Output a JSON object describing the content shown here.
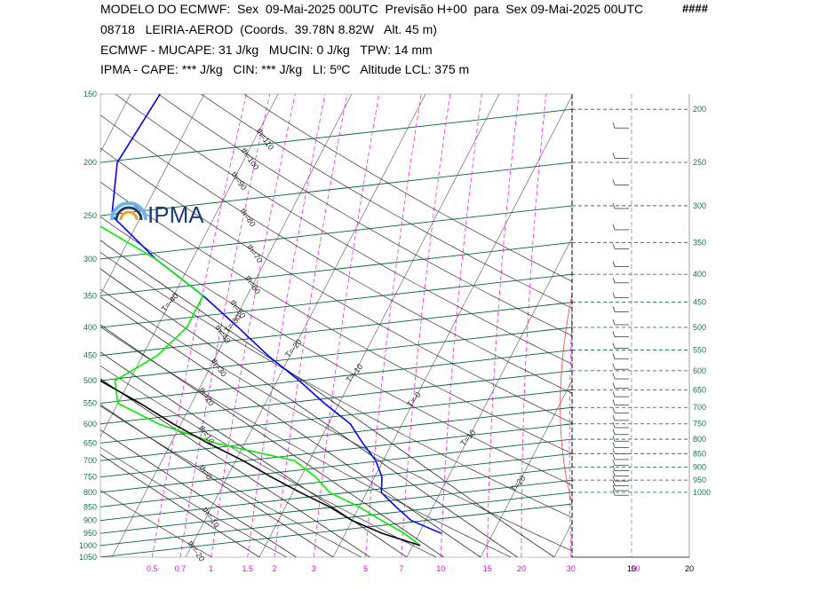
{
  "header": {
    "line1": "MODELO DO ECMWF:  Sex  09-Mai-2025 00UTC  Previsão H+00  para  Sex 09-Mai-2025 00UTC",
    "marks": "####",
    "line2": "08718   LEIRIA-AEROD  (Coords.  39.78N 8.82W   Alt. 45 m)",
    "line3": "ECMWF - MUCAPE: 31 J/kg   MUCIN: 0 J/kg   TPW: 14 mm",
    "line4": "IPMA - CAPE: *** J/kg   CIN: *** J/kg   LI: 5ºC   Altitude LCL: 375 m"
  },
  "logo": {
    "text": "IPMA"
  },
  "chart_data": {
    "type": "line",
    "pressure_levels_left": [
      "150",
      "200",
      "250",
      "300",
      "350",
      "400",
      "450",
      "500",
      "550",
      "600",
      "650",
      "700",
      "750",
      "800",
      "850",
      "900",
      "950",
      "1000",
      "1050"
    ],
    "pressure_levels_right": [
      "200",
      "250",
      "300",
      "350",
      "400",
      "450",
      "500",
      "550",
      "600",
      "650",
      "700",
      "750",
      "800",
      "850",
      "900",
      "950",
      "1000"
    ],
    "mixing_ratio_ticks": [
      "0.5",
      "0.7",
      "1",
      "1.5",
      "2",
      "3",
      "5",
      "7",
      "10",
      "15",
      "20",
      "30",
      "50"
    ],
    "wind_axis_ticks": [
      "10",
      "20"
    ],
    "isotherm_labels": [
      "T=-90",
      "T=-80",
      "T=-70",
      "T=-60",
      "T=-50",
      "T=-40",
      "T=-30",
      "T=-20",
      "T=-10",
      "T=-0",
      "T=10",
      "T=20",
      "T=30",
      "T=40"
    ],
    "dry_adiabat_labels": [
      "th=110",
      "th=100",
      "th=90",
      "th=80",
      "th=70",
      "th=60",
      "th=50",
      "th=40",
      "th=30",
      "th=20",
      "th=10",
      "th=0",
      "th=-10",
      "th=-20"
    ],
    "moist_adiabat_labels": [
      "25",
      "20",
      "15",
      "10",
      "5",
      "0",
      "-5",
      "-10"
    ],
    "colors": {
      "temperature": "#0000ff",
      "dewpoint": "#00ee00",
      "parcel": "#000000",
      "isotherm": "#006633",
      "mixing_ratio": "#ff00ff",
      "dry_adiabat": "#333333",
      "axis_text": "#117744",
      "mixing_text": "#ee00ee"
    },
    "series": [
      {
        "points": [
          [
            950,
            13
          ],
          [
            900,
            8
          ],
          [
            850,
            5
          ],
          [
            800,
            2
          ],
          [
            750,
            1
          ],
          [
            700,
            -1
          ],
          [
            650,
            -4
          ],
          [
            600,
            -7
          ],
          [
            550,
            -12
          ],
          [
            500,
            -17
          ],
          [
            450,
            -23
          ],
          [
            400,
            -29
          ],
          [
            350,
            -36
          ],
          [
            300,
            -45
          ],
          [
            250,
            -54
          ],
          [
            200,
            -57
          ],
          [
            150,
            -56
          ]
        ]
      },
      {
        "points": [
          [
            1000,
            11
          ],
          [
            950,
            8
          ],
          [
            900,
            4
          ],
          [
            850,
            0
          ],
          [
            800,
            -5
          ],
          [
            750,
            -8
          ],
          [
            700,
            -12
          ],
          [
            650,
            -24
          ],
          [
            600,
            -33
          ],
          [
            550,
            -40
          ],
          [
            500,
            -42
          ],
          [
            450,
            -38
          ],
          [
            400,
            -36
          ],
          [
            350,
            -36
          ],
          [
            300,
            -45
          ],
          [
            250,
            -58
          ],
          [
            200,
            -67
          ],
          [
            150,
            -78
          ]
        ]
      },
      {
        "points": [
          [
            1000,
            11
          ],
          [
            950,
            5
          ],
          [
            900,
            0
          ],
          [
            850,
            -4
          ],
          [
            800,
            -9
          ],
          [
            750,
            -14
          ],
          [
            700,
            -19
          ],
          [
            650,
            -25
          ],
          [
            600,
            -31
          ],
          [
            550,
            -37
          ],
          [
            500,
            -44
          ],
          [
            450,
            -51
          ],
          [
            400,
            -59
          ],
          [
            350,
            -67
          ],
          [
            300,
            -77
          ],
          [
            250,
            -88
          ],
          [
            200,
            -95
          ]
        ]
      }
    ]
  }
}
